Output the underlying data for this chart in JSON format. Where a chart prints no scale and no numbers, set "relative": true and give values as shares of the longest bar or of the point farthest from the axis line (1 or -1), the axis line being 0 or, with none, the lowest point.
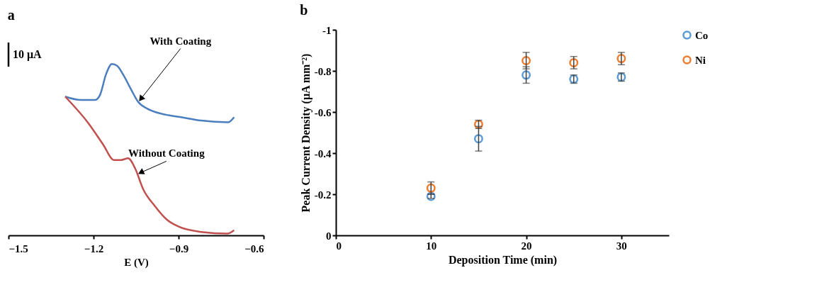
{
  "chart_data": [
    {
      "type": "line",
      "title": "a",
      "xlabel": "E (V)",
      "relative": true,
      "xlim": [
        -1.5,
        -0.6
      ],
      "xticks": [
        -1.5,
        -1.2,
        -0.9,
        -0.6
      ],
      "grid": false,
      "tick_labels": "x",
      "line_style": "solid",
      "marker": "none",
      "series": [
        {
          "color": "#4a7ebf",
          "x": [
            -1.3,
            -1.244,
            -1.195,
            -1.177,
            -1.156,
            -1.135,
            -1.117,
            -1.096,
            -1.067,
            -1.043,
            -1.011,
            -0.961,
            -0.891,
            -0.82,
            -0.725,
            -0.704
          ],
          "values": [
            0.81,
            0.79,
            0.79,
            0.82,
            0.94,
            1.0,
            0.99,
            0.94,
            0.85,
            0.78,
            0.74,
            0.71,
            0.69,
            0.67,
            0.66,
            0.69
          ]
        },
        {
          "color": "#c0504d",
          "x": [
            -1.3,
            -1.216,
            -1.166,
            -1.128,
            -1.103,
            -1.078,
            -1.053,
            -1.025,
            -0.983,
            -0.94,
            -0.898,
            -0.82,
            -0.728,
            -0.704
          ],
          "values": [
            0.81,
            0.65,
            0.53,
            0.44,
            0.44,
            0.45,
            0.39,
            0.27,
            0.17,
            0.09,
            0.05,
            0.02,
            0.01,
            0.03
          ]
        }
      ],
      "annotations": [
        "10 μA",
        {
          "text": "With Coating",
          "x": -1.043,
          "y": 0.78
        },
        {
          "text": "Without Coating",
          "x": -1.043,
          "y": 0.35
        }
      ]
    },
    {
      "type": "scatter",
      "title": "b",
      "xlabel": "Deposition Time (min)",
      "ylabel": "Peak Current Density (μA mm⁻²)",
      "x": [
        10,
        15,
        20,
        25,
        30
      ],
      "xlim": [
        0,
        35
      ],
      "xticks": [
        0,
        10,
        20,
        30
      ],
      "ylim": [
        0,
        -1
      ],
      "yticks": [
        0,
        -0.2,
        -0.4,
        -0.6,
        -0.8,
        -1
      ],
      "grid": false,
      "legend": "right",
      "marker": "circle",
      "series": [
        {
          "name": "Co",
          "color": "#5b9bd5",
          "values": [
            -0.19,
            -0.47,
            -0.78,
            -0.76,
            -0.77
          ],
          "errors": [
            0.01,
            0.06,
            0.04,
            0.02,
            0.02
          ]
        },
        {
          "name": "Ni",
          "color": "#ed7d31",
          "values": [
            -0.23,
            -0.54,
            -0.85,
            -0.84,
            -0.86
          ],
          "errors": [
            0.03,
            0.02,
            0.04,
            0.03,
            0.03
          ]
        }
      ]
    }
  ]
}
